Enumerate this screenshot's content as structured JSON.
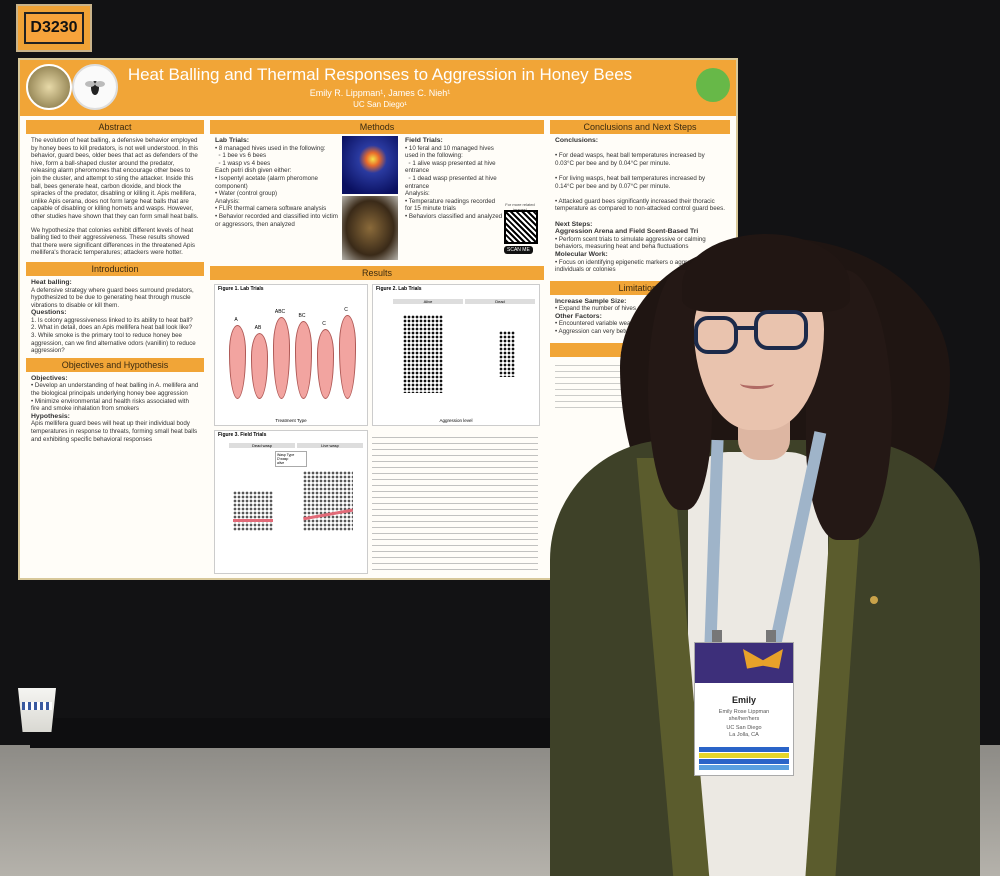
{
  "booth_tag": "D3230",
  "poster": {
    "title": "Heat Balling and Thermal Responses to Aggression in Honey Bees",
    "authors": "Emily R. Lippman¹, James C. Nieh¹",
    "affiliation": "UC San Diego¹",
    "abstract": {
      "heading": "Abstract",
      "p1": "The evolution of heat balling, a defensive behavior employed by honey bees to kill predators, is not well understood. In this behavior, guard bees, older bees that act as defenders of the hive, form a ball-shaped cluster around the predator, releasing alarm pheromones that encourage other bees to join the cluster, and attempt to sting the attacker. Inside this ball, bees generate heat, carbon dioxide, and block the spiracles of the predator, disabling or killing it. Apis mellifera, unlike Apis cerana, does not form large heat balls that are capable of disabling or killing hornets and wasps. However, other studies have shown that they can form small heat balls.",
      "p2": "We hypothesize that colonies exhibit different levels of heat balling tied to their aggressiveness. These results showed that there were significant differences in the threatened Apis mellifera's thoracic temperatures; attackers were hotter."
    },
    "introduction": {
      "heading": "Introduction",
      "sub": "Heat balling:",
      "p1": "A defensive strategy where guard bees surround predators, hypothesized to be due to generating heat through muscle vibrations to disable or kill them.",
      "q_head": "Questions:",
      "q1": "1. Is colony aggressiveness linked to its ability to heat ball?",
      "q2": "2. What in detail, does an Apis mellifera heat ball look like?",
      "q3": "3. While smoke is the primary tool to reduce honey bee aggression, can we find alternative odors (vanillin) to reduce aggression?"
    },
    "objectives": {
      "heading": "Objectives and Hypothesis",
      "sub": "Objectives:",
      "o1": "Develop an understanding of heat balling in A. mellifera and the biological principals underlying honey bee aggression",
      "o2": "Minimize environmental and health risks associated with fire and smoke inhalation from smokers",
      "h_head": "Hypothesis:",
      "h1": "Apis mellifera guard bees will heat up their individual body temperatures in response to threats, forming small heat balls and exhibiting specific behavioral responses"
    },
    "methods": {
      "heading": "Methods",
      "lab_head": "Lab Trials:",
      "lab1": "8 managed hives used in the following:",
      "lab1a": "1 bee vs 6 bees",
      "lab1b": "1 wasp vs 4 bees",
      "lab2": "Each petri dish given either:",
      "lab2a": "Isopentyl acetate (alarm pheromone component)",
      "lab2b": "Water (control group)",
      "lab3": "Analysis:",
      "lab3a": "FLIR thermal camera software analysis",
      "lab3b": "Behavior recorded and classified into victim or aggressors, then analyzed",
      "field_head": "Field Trials:",
      "field1": "10 feral and 10 managed hives used in the following:",
      "field1a": "1 alive wasp presented at hive entrance",
      "field1b": "1 dead wasp presented at hive entrance",
      "field2": "Analysis:",
      "field2a": "Temperature readings recorded for 15 minute trials",
      "field2b": "Behaviors classified and analyzed",
      "qr_caption": "For more related images!",
      "scan_label": "SCAN ME"
    },
    "results": {
      "heading": "Results",
      "fig1": "Figure 1. Lab Trials",
      "fig2": "Figure 2. Lab Trials",
      "fig3": "Figure 3. Field Trials",
      "fig1_groups": [
        "A",
        "AB",
        "ABC",
        "BC",
        "C",
        "C"
      ],
      "fig2_panels": [
        "Alive",
        "Dead"
      ],
      "fig3_panels": [
        "Dead wasp",
        "Live wasp"
      ],
      "fig3_legend_title": "Wasp Type",
      "fig3_legend": [
        "D'wasp",
        "alive"
      ],
      "fig1_xlabel": "Treatment Type",
      "fig2_xlabel": "Aggression level"
    },
    "conclusions": {
      "heading": "Conclusions and Next Steps",
      "sub": "Conclusions:",
      "c1": "For dead wasps, heat ball temperatures increased by 0.03°C per bee and by 0.04°C per minute.",
      "c2": "For living wasps, heat ball temperatures increased by 0.14°C per bee and by 0.07°C per minute.",
      "c3": "Attacked guard bees significantly increased their thoracic temperature as compared to non-attacked control guard bees.",
      "next_head": "Next Steps:",
      "n1_head": "Aggression Arena and Field Scent-Based Tri",
      "n1": "Perform scent trials to simulate aggressive or calming behaviors, measuring heat and beha fluctuations",
      "n2_head": "Molecular Work:",
      "n2": "Focus on identifying epigenetic markers o aggressive individuals or colonies"
    },
    "limitations": {
      "heading": "Limitations",
      "l1_head": "Increase Sample Size:",
      "l1": "Expand the number of hives and individual tr used",
      "l2_head": "Other Factors:",
      "l2": "Encountered variable weathe field trials",
      "l3": "Aggression can very betwe same colony"
    },
    "acknowledgements": {
      "heading": "Acknowle"
    }
  },
  "badge": {
    "name": "Emily",
    "full_name": "Emily Rose Lippman",
    "pronouns": "she/her/hers",
    "org": "UC San Diego",
    "city": "La Jolla, CA"
  },
  "colors": {
    "poster_accent": "#f1a537",
    "lanyard": "#9fb4c9",
    "cardigan": "#3e4128"
  }
}
